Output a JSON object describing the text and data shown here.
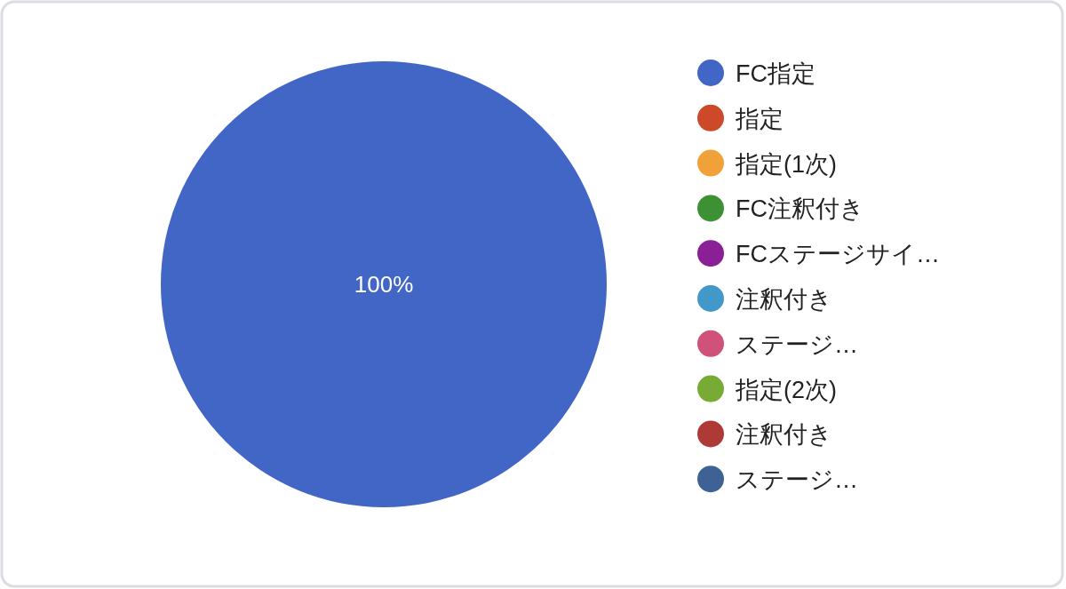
{
  "chart_data": {
    "type": "pie",
    "categories": [
      "FC指定",
      "指定",
      "指定(1次)",
      "FC注釈付き",
      "FCステージサイ…",
      "注釈付き",
      "ステージ…",
      "指定(2次)",
      "注釈付き",
      "ステージ…"
    ],
    "values": [
      100,
      0,
      0,
      0,
      0,
      0,
      0,
      0,
      0,
      0
    ],
    "colors": [
      "#4166c5",
      "#cc4a2a",
      "#f0a13a",
      "#3e9035",
      "#8b1f96",
      "#4299c9",
      "#d0527a",
      "#77ab36",
      "#ad3a36",
      "#3f6295"
    ],
    "value_labels": [
      "100%",
      null,
      null,
      null,
      null,
      null,
      null,
      null,
      null,
      null
    ],
    "legend": "right"
  }
}
